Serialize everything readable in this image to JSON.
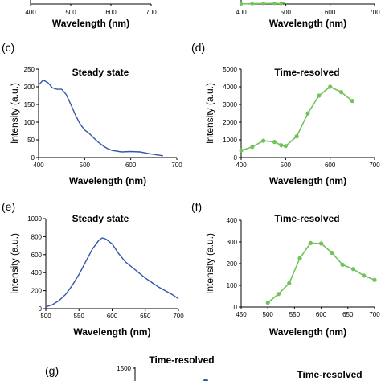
{
  "colors": {
    "steady": "#3656a8",
    "resolved": "#72c35a",
    "axis": "#000000"
  },
  "chart_data": [
    {
      "id": "a",
      "type": "line",
      "panel_label": "",
      "title": "",
      "xlabel": "Wavelength (nm)",
      "ylabel": "",
      "xlim": [
        400,
        700
      ],
      "xticks": [
        "400",
        "500",
        "600",
        "700"
      ],
      "series": [
        {
          "x": [],
          "y": []
        }
      ]
    },
    {
      "id": "b",
      "type": "line",
      "panel_label": "",
      "title": "",
      "xlabel": "Wavelength (nm)",
      "ylabel": "",
      "xlim": [
        400,
        700
      ],
      "xticks": [
        "400",
        "500",
        "600",
        "700"
      ],
      "series": [
        {
          "x": [
            400,
            425,
            450,
            475,
            490,
            500
          ],
          "y": [
            0.25,
            0.45,
            0.55,
            0.6,
            0.5,
            1.3
          ]
        }
      ]
    },
    {
      "id": "c",
      "type": "line",
      "panel_label": "(c)",
      "title": "Steady state",
      "xlabel": "Wavelength (nm)",
      "ylabel": "Intensity (a.u.)",
      "xlim": [
        400,
        700
      ],
      "ylim": [
        0,
        250
      ],
      "xticks": [
        "400",
        "500",
        "600",
        "700"
      ],
      "yticks": [
        "0",
        "50",
        "100",
        "150",
        "200",
        "250"
      ],
      "series": [
        {
          "x": [
            400,
            410,
            420,
            430,
            440,
            450,
            460,
            470,
            480,
            490,
            500,
            510,
            520,
            530,
            540,
            550,
            560,
            580,
            600,
            620,
            640,
            660,
            670
          ],
          "y": [
            205,
            219,
            212,
            197,
            193,
            193,
            178,
            150,
            120,
            95,
            78,
            68,
            55,
            43,
            33,
            25,
            20,
            16,
            17,
            16,
            11,
            7,
            5
          ]
        }
      ]
    },
    {
      "id": "d",
      "type": "line",
      "panel_label": "(d)",
      "title": "Time-resolved",
      "xlabel": "Wavelength (nm)",
      "ylabel": "Intensity (a.u.)",
      "xlim": [
        400,
        700
      ],
      "ylim": [
        0,
        5000
      ],
      "xticks": [
        "400",
        "500",
        "600",
        "700"
      ],
      "yticks": [
        "0",
        "1000",
        "2000",
        "3000",
        "4000",
        "5000"
      ],
      "series": [
        {
          "x": [
            400,
            425,
            450,
            475,
            490,
            500,
            525,
            550,
            575,
            600,
            625,
            650
          ],
          "y": [
            400,
            600,
            950,
            880,
            700,
            650,
            1200,
            2500,
            3500,
            4000,
            3700,
            3200
          ]
        }
      ]
    },
    {
      "id": "e",
      "type": "line",
      "panel_label": "(e)",
      "title": "Steady state",
      "xlabel": "Wavelength (nm)",
      "ylabel": "Intensity (a.u.)",
      "xlim": [
        500,
        700
      ],
      "ylim": [
        0,
        1000
      ],
      "xticks": [
        "500",
        "550",
        "600",
        "650",
        "700"
      ],
      "yticks": [
        "0",
        "200",
        "400",
        "600",
        "800",
        "1000"
      ],
      "series": [
        {
          "x": [
            500,
            510,
            520,
            530,
            540,
            550,
            560,
            570,
            580,
            585,
            590,
            600,
            610,
            620,
            630,
            640,
            650,
            660,
            670,
            680,
            690,
            700
          ],
          "y": [
            20,
            45,
            90,
            160,
            260,
            380,
            520,
            660,
            760,
            785,
            775,
            720,
            610,
            520,
            460,
            400,
            340,
            290,
            240,
            200,
            160,
            110
          ]
        }
      ]
    },
    {
      "id": "f",
      "type": "line",
      "panel_label": "(f)",
      "title": "Time-resolved",
      "xlabel": "Wavelength (nm)",
      "ylabel": "Intensity (a.u.)",
      "xlim": [
        450,
        700
      ],
      "ylim": [
        0,
        400
      ],
      "xticks": [
        "450",
        "500",
        "550",
        "600",
        "650",
        "700"
      ],
      "yticks": [
        "0",
        "100",
        "200",
        "300",
        "400"
      ],
      "series": [
        {
          "x": [
            500,
            520,
            540,
            560,
            580,
            600,
            620,
            640,
            660,
            680,
            700
          ],
          "y": [
            20,
            60,
            110,
            225,
            295,
            293,
            250,
            195,
            175,
            145,
            125
          ]
        }
      ]
    },
    {
      "id": "g",
      "type": "line",
      "panel_label": "(g)",
      "title": "Time-resolved",
      "xlabel": "",
      "ylabel": "",
      "yticks": [
        "1500"
      ],
      "series": [
        {
          "x": [],
          "y": []
        }
      ]
    }
  ],
  "extra_title": "Time-resolved"
}
